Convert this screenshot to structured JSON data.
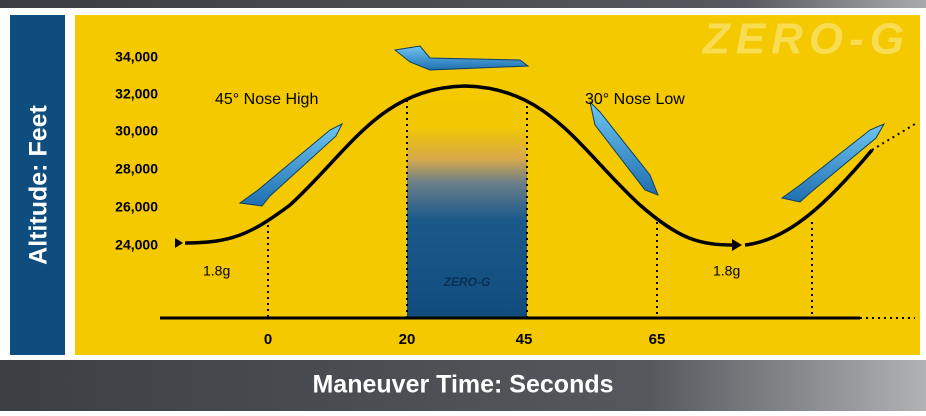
{
  "watermark": "ZERO-G",
  "y_axis": {
    "title": "Altitude: Feet",
    "ticks": [
      "34,000",
      "32,000",
      "30,000",
      "28,000",
      "26,000",
      "24,000"
    ]
  },
  "x_axis": {
    "title": "Maneuver Time: Seconds",
    "ticks": [
      "0",
      "20",
      "45",
      "65"
    ]
  },
  "annotations": {
    "climb": "45° Nose High",
    "dive": "30° Nose Low",
    "pullup_1": "1.8g",
    "pullup_2": "1.8g"
  },
  "band_label": "ZERO-G"
}
